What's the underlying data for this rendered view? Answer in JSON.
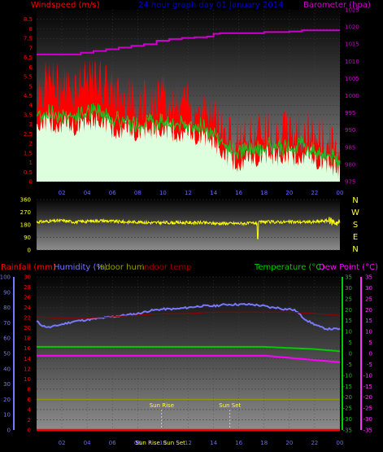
{
  "chart_data": [
    {
      "type": "line",
      "title": "24 hour graph day 01 January 2014",
      "left_axis_label": "Windspeed (m/s)",
      "right_axis_label": "Barometer (hpa)",
      "x_ticks": [
        "02",
        "04",
        "06",
        "08",
        "10",
        "12",
        "14",
        "16",
        "18",
        "20",
        "22",
        "00"
      ],
      "left_ticks": [
        "0",
        "0.5",
        "1",
        "1.5",
        "2",
        "2.5",
        "3",
        "3.5",
        "4",
        "4.5",
        "5",
        "5.5",
        "6",
        "6.5",
        "7",
        "7.5",
        "8",
        "8.5"
      ],
      "right_ticks": [
        "975",
        "980",
        "985",
        "990",
        "995",
        "1000",
        "1005",
        "1010",
        "1015",
        "1020",
        "1025"
      ],
      "ylim_left": [
        0,
        9
      ],
      "ylim_right": [
        975,
        1025
      ],
      "series": [
        {
          "color": "#ff0000",
          "x": [
            0,
            1,
            2,
            3,
            4,
            5,
            6,
            7,
            8,
            9,
            10,
            11,
            12,
            13,
            14,
            15,
            16,
            17,
            18,
            19,
            20,
            21,
            22,
            23,
            24
          ],
          "values": [
            4.8,
            5.2,
            4.9,
            5.0,
            5.1,
            5.4,
            4.6,
            4.3,
            4.0,
            4.2,
            4.4,
            4.1,
            4.0,
            3.9,
            3.6,
            2.6,
            2.1,
            2.4,
            2.7,
            2.5,
            2.6,
            2.6,
            2.3,
            2.0,
            1.6
          ]
        },
        {
          "color": "#22bb22",
          "x": [
            0,
            1,
            2,
            3,
            4,
            5,
            6,
            7,
            8,
            9,
            10,
            11,
            12,
            13,
            14,
            15,
            16,
            17,
            18,
            19,
            20,
            21,
            22,
            23,
            24
          ],
          "values": [
            3.5,
            3.6,
            3.5,
            3.4,
            3.6,
            3.7,
            3.3,
            3.1,
            3.0,
            3.1,
            3.2,
            3.0,
            3.0,
            2.9,
            2.6,
            1.8,
            1.5,
            1.7,
            1.9,
            1.8,
            1.8,
            1.9,
            1.6,
            1.4,
            1.1
          ]
        },
        {
          "color": "#ddffdd",
          "x": [
            0,
            1,
            2,
            3,
            4,
            5,
            6,
            7,
            8,
            9,
            10,
            11,
            12,
            13,
            14,
            15,
            16,
            17,
            18,
            19,
            20,
            21,
            22,
            23,
            24
          ],
          "values": [
            3.0,
            3.1,
            3.0,
            2.9,
            3.1,
            3.2,
            2.8,
            2.7,
            2.6,
            2.7,
            2.7,
            2.6,
            2.5,
            2.4,
            2.1,
            1.3,
            1.0,
            1.2,
            1.4,
            1.3,
            1.3,
            1.4,
            1.2,
            0.9,
            0.6
          ]
        },
        {
          "color": "#cc00cc",
          "axis": "right",
          "x": [
            0,
            2,
            3.5,
            4.5,
            5.5,
            6.5,
            7.5,
            8.5,
            9.5,
            10.5,
            11.5,
            12.5,
            13.5,
            14,
            14.5,
            16,
            18,
            19,
            20,
            21,
            22,
            24
          ],
          "values": [
            1012,
            1012,
            1012.5,
            1013,
            1013.5,
            1014,
            1014.5,
            1015,
            1016,
            1016.5,
            1016.8,
            1017,
            1017.2,
            1018,
            1018.2,
            1018.2,
            1018.5,
            1018.5,
            1018.7,
            1019,
            1019,
            1019
          ]
        }
      ]
    },
    {
      "type": "scatter",
      "title": "",
      "left_ticks": [
        "0",
        "90",
        "180",
        "270",
        "360"
      ],
      "right_labels": [
        "N",
        "W",
        "S",
        "E",
        "N"
      ],
      "x_ticks": [],
      "ylim_left": [
        0,
        360
      ],
      "series": [
        {
          "color": "#ffff00",
          "x": [
            0,
            1,
            2,
            3,
            4,
            5,
            6,
            7,
            8,
            9,
            10,
            11,
            12,
            13,
            14,
            15,
            16,
            17,
            18,
            19,
            20,
            21,
            22,
            23,
            24
          ],
          "values": [
            200,
            205,
            210,
            200,
            205,
            210,
            205,
            200,
            200,
            195,
            195,
            195,
            195,
            195,
            190,
            190,
            190,
            190,
            200,
            200,
            200,
            200,
            200,
            210,
            195
          ]
        }
      ]
    },
    {
      "type": "line",
      "legend": [
        "Rainfall (mm)",
        "Humidity (%)",
        "Indoor hum",
        "Indoor temp",
        "Temperature (°C)",
        "Dew Point (°C)"
      ],
      "annotations": [
        "Sun Rise",
        "Sun Set",
        "Sun Rise",
        "Sun Set"
      ],
      "x_ticks": [
        "02",
        "04",
        "06",
        "08",
        "10",
        "12",
        "14",
        "16",
        "18",
        "20",
        "22",
        "00"
      ],
      "rain_ticks": [
        "0",
        "2",
        "4",
        "6",
        "8",
        "10",
        "12",
        "14",
        "16",
        "18",
        "20",
        "22",
        "24",
        "26",
        "28",
        "30"
      ],
      "humidity_ticks": [
        "0",
        "10",
        "20",
        "30",
        "40",
        "50",
        "60",
        "70",
        "80",
        "90",
        "100"
      ],
      "temp_ticks": [
        "-35",
        "-30",
        "-25",
        "-20",
        "-15",
        "-10",
        "-5",
        "0",
        "5",
        "10",
        "15",
        "20",
        "25",
        "30",
        "35"
      ],
      "ylim_humidity": [
        0,
        100
      ],
      "ylim_temp": [
        -35,
        35
      ],
      "series": [
        {
          "color": "#ff0000",
          "axis": "rain",
          "x": [
            0,
            24
          ],
          "values": [
            0,
            0
          ]
        },
        {
          "color": "#7777ff",
          "axis": "humidity",
          "x": [
            0,
            0.5,
            1,
            2,
            3,
            4,
            5,
            6,
            7,
            8,
            9,
            10,
            11,
            12,
            13,
            14,
            15,
            16,
            17,
            18,
            18.5,
            19,
            19.5,
            20,
            20.5,
            21,
            21.5,
            22,
            22.5,
            23,
            24
          ],
          "values": [
            71,
            68,
            67,
            69,
            71,
            72,
            73,
            74,
            75,
            76,
            78,
            79,
            79,
            80,
            81,
            81,
            82,
            82,
            82,
            81,
            80,
            80,
            79,
            79,
            78,
            74,
            71,
            69,
            67,
            66,
            66
          ]
        },
        {
          "color": "#990000",
          "axis": "humidity",
          "x": [
            0,
            2,
            4,
            6,
            8,
            10,
            12,
            14,
            16,
            18,
            20,
            22,
            24
          ],
          "values": [
            74,
            73,
            73,
            74,
            75,
            76,
            76,
            77,
            77,
            77,
            77,
            76,
            75
          ]
        },
        {
          "color": "#9b9b00",
          "axis": "temp",
          "x": [
            0,
            24
          ],
          "values": [
            -21,
            -21
          ]
        },
        {
          "color": "#00cc00",
          "axis": "temp",
          "x": [
            0,
            6,
            12,
            16,
            18,
            20,
            22,
            24
          ],
          "values": [
            3,
            3,
            3,
            3,
            3,
            2.5,
            2,
            1
          ]
        },
        {
          "color": "#ff00ff",
          "axis": "temp",
          "x": [
            0,
            4,
            8,
            12,
            16,
            18,
            20,
            22,
            24
          ],
          "values": [
            -1,
            -1,
            -1,
            -1,
            -1,
            -1,
            -2,
            -3,
            -4
          ]
        }
      ],
      "sun_rise_hour": 9.9,
      "sun_set_hour": 15.3
    }
  ]
}
